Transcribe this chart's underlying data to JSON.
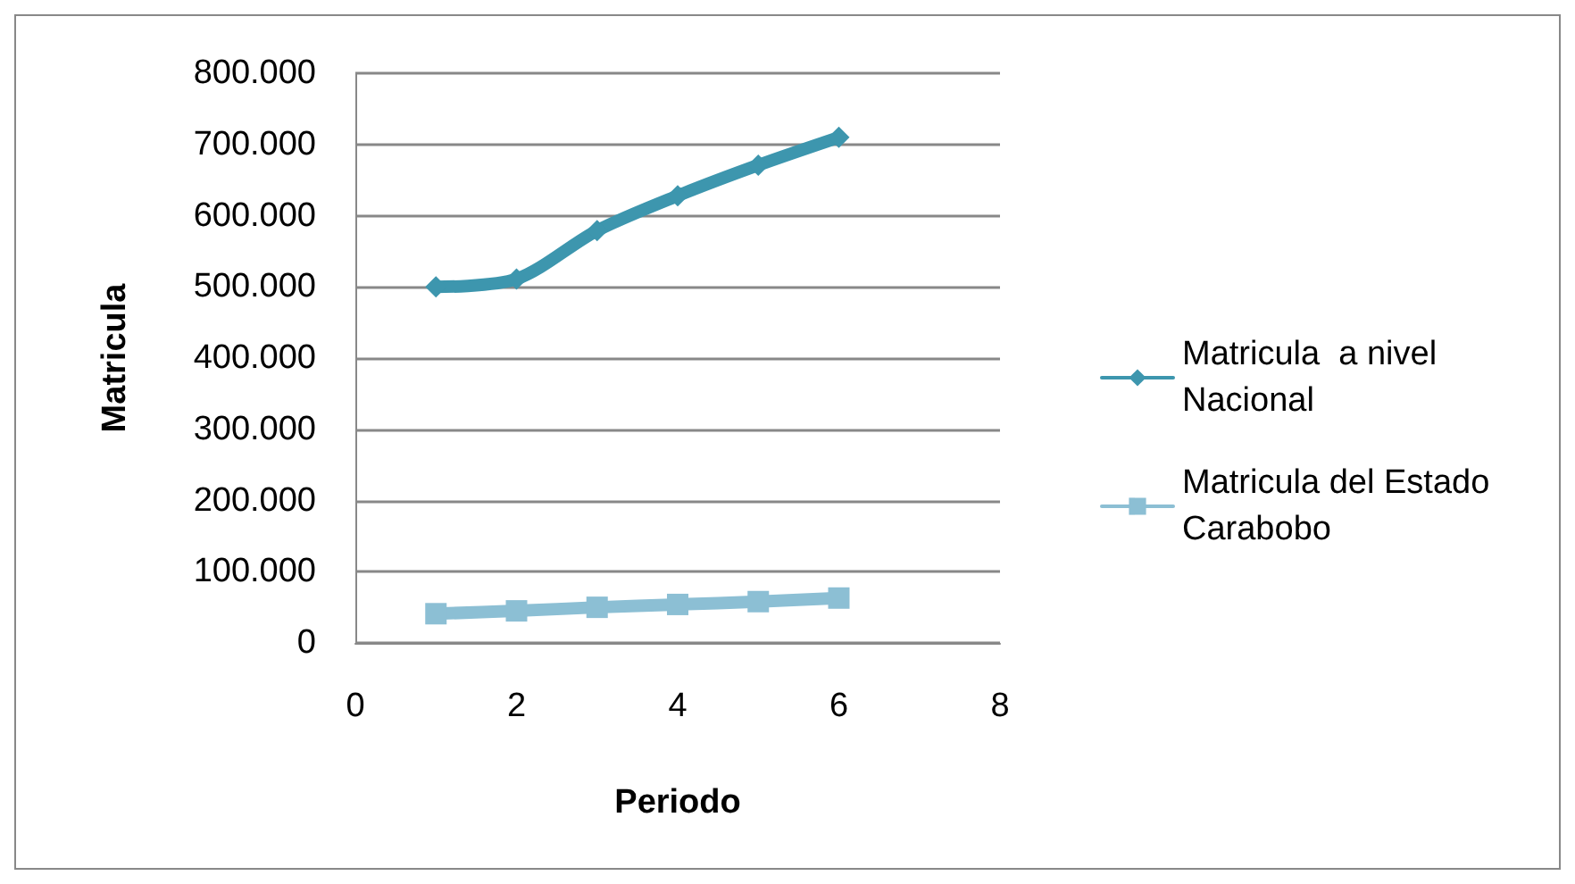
{
  "chart_data": {
    "type": "line",
    "xlabel": "Periodo",
    "ylabel": "Matricula",
    "x": [
      1,
      2,
      3,
      4,
      5,
      6
    ],
    "series": [
      {
        "name": "Matricula  a nivel Nacional",
        "color": "#3d96ae",
        "marker": "diamond",
        "values": [
          500000,
          511000,
          579000,
          628000,
          671000,
          710000
        ]
      },
      {
        "name": "Matricula del Estado Carabobo",
        "color": "#8cbfd4",
        "marker": "square",
        "values": [
          41000,
          45000,
          50000,
          54000,
          58000,
          63000
        ]
      }
    ],
    "xlim": [
      0,
      8
    ],
    "xticks": [
      0,
      2,
      4,
      6,
      8
    ],
    "ylim": [
      0,
      800000
    ],
    "yticks": [
      {
        "value": 0,
        "label": "0"
      },
      {
        "value": 100000,
        "label": "100.000"
      },
      {
        "value": 200000,
        "label": "200.000"
      },
      {
        "value": 300000,
        "label": "300.000"
      },
      {
        "value": 400000,
        "label": "400.000"
      },
      {
        "value": 500000,
        "label": "500.000"
      },
      {
        "value": 600000,
        "label": "600.000"
      },
      {
        "value": 700000,
        "label": "700.000"
      },
      {
        "value": 800000,
        "label": "800.000"
      }
    ],
    "grid": "y",
    "legend": "right"
  }
}
